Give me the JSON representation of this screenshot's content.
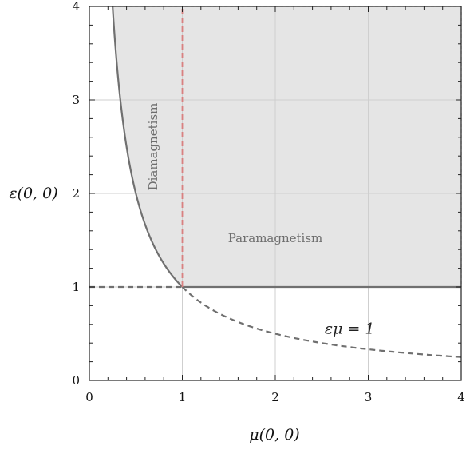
{
  "chart_data": {
    "type": "line",
    "xlabel": "μ(0, 0)",
    "ylabel": "ε(0, 0)",
    "xlim": [
      0,
      4
    ],
    "ylim": [
      0,
      4
    ],
    "xticks": [
      "0",
      "1",
      "2",
      "3",
      "4"
    ],
    "yticks": [
      "0",
      "1",
      "2",
      "3",
      "4"
    ],
    "grid": true,
    "shaded_region": {
      "description_label": "",
      "bounds": "ε ≥ 1/μ for μ < 1; ε ≥ 1 for μ ≥ 1",
      "color": "#e5e5e5"
    },
    "curves": [
      {
        "id": "hyperbola-solid",
        "style": "solid",
        "color": "#707070",
        "formula": "ε = 1/μ",
        "x_range": [
          0.25,
          1
        ]
      },
      {
        "id": "hyperbola-dashed",
        "style": "dashed",
        "color": "#707070",
        "formula": "ε = 1/μ",
        "x_range": [
          1,
          4
        ]
      },
      {
        "id": "epsilon-one-solid",
        "style": "solid",
        "color": "#707070",
        "x": [
          1,
          4
        ],
        "y": [
          1,
          1
        ]
      },
      {
        "id": "epsilon-one-dashed",
        "style": "dashed",
        "color": "#707070",
        "x": [
          0,
          1
        ],
        "y": [
          1,
          1
        ]
      },
      {
        "id": "mu-one-dashed",
        "style": "dashed",
        "color": "#d98080",
        "x": [
          1,
          1
        ],
        "y": [
          1,
          4
        ]
      }
    ],
    "annotations": [
      {
        "text": "Diamagnetism",
        "x": 0.73,
        "y": 2.5,
        "rotation": -90
      },
      {
        "text": "Paramagnetism",
        "x": 2.0,
        "y": 1.48
      },
      {
        "text": "εμ = 1",
        "x": 2.8,
        "y": 0.5
      }
    ]
  }
}
